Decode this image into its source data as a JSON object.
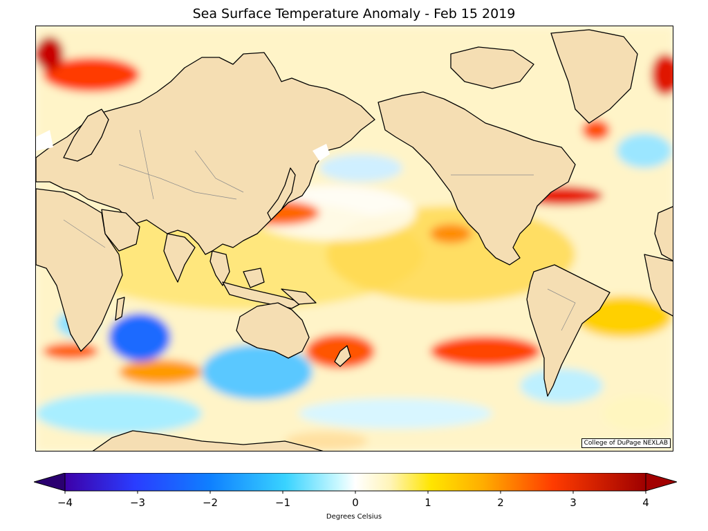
{
  "title": "Sea Surface Temperature Anomaly - Feb 15 2019",
  "credit": "College of DuPage NEXLAB",
  "colorbar": {
    "label": "Degrees Celsius",
    "ticks": [
      "−4",
      "−3",
      "−2",
      "−1",
      "0",
      "1",
      "2",
      "3",
      "4"
    ],
    "min": -4,
    "max": 4,
    "extend": "both",
    "colors": [
      "#2a0070",
      "#3a17b8",
      "#1f4dff",
      "#138cff",
      "#27c6ff",
      "#9befff",
      "#ffffff",
      "#fff2b0",
      "#ffe400",
      "#ffb000",
      "#ff6a00",
      "#ee1a00",
      "#a20000"
    ]
  },
  "map": {
    "land_color": "#f5deb3",
    "coastline_color": "#000000",
    "border_color": "#8a8a8a",
    "projection": "cylindrical, Pacific-centred"
  }
}
